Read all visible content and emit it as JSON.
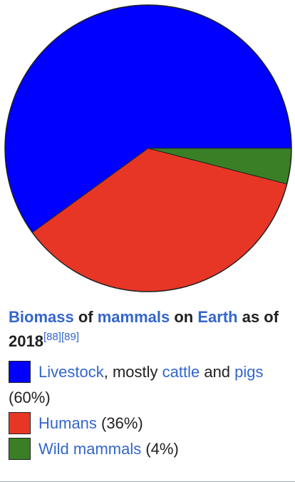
{
  "chart_data": {
    "type": "pie",
    "slices": [
      {
        "label": "Livestock",
        "value": 60,
        "color": "#0000ff"
      },
      {
        "label": "Humans",
        "value": 36,
        "color": "#e83626"
      },
      {
        "label": "Wild mammals",
        "value": 4,
        "color": "#3a7f26"
      }
    ],
    "start": "right (3 o'clock), counterclockwise",
    "outline_color": "#202122"
  },
  "caption": {
    "t1": "Biomass",
    "t2": " of ",
    "t3": "mammals",
    "t4": " on ",
    "t5": "Earth",
    "t6": " as of 2018",
    "ref1": "[88]",
    "ref2": "[89]"
  },
  "legend": {
    "livestock": {
      "link": "Livestock",
      "text1": ", mostly ",
      "link2": "cattle",
      "text2": " and ",
      "link3": "pigs",
      "text3": " (60%)",
      "color": "#0000ff"
    },
    "humans": {
      "link": "Humans",
      "text": " (36%)",
      "color": "#e83626"
    },
    "wild": {
      "link": "Wild mammals",
      "text": " (4%)",
      "color": "#3a7f26"
    }
  }
}
